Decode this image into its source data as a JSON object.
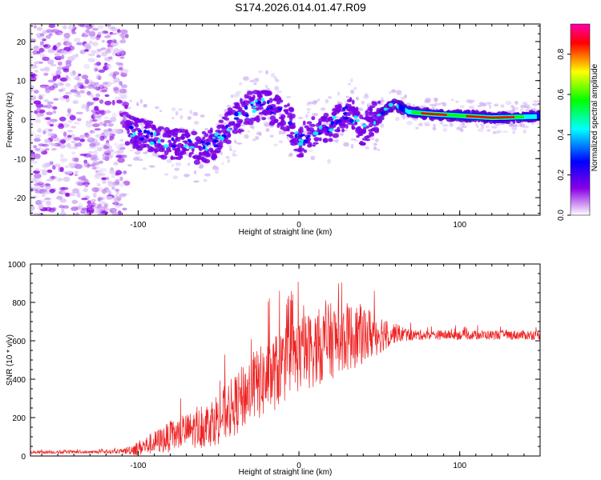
{
  "title": "S174.2026.014.01.47.R09",
  "chart_data": [
    {
      "type": "heatmap",
      "xlabel": "Height of straight line (km)",
      "ylabel": "Frequency (Hz)",
      "xlim": [
        -167,
        150
      ],
      "ylim": [
        -24.5,
        24.5
      ],
      "x_ticks": [
        -100,
        0,
        100
      ],
      "x_tick_labels": [
        "-100",
        "0",
        "100"
      ],
      "y_ticks": [
        -20,
        -10,
        0,
        10,
        20
      ],
      "y_tick_labels": [
        "-20",
        "-10",
        "0",
        "10",
        "20"
      ],
      "noise_region_end": -107,
      "ridge": {
        "x": [
          -104,
          -95,
          -85,
          -75,
          -65,
          -57,
          -50,
          -42,
          -36,
          -30,
          -24,
          -18,
          -12,
          -6,
          0,
          5,
          12,
          18,
          24,
          30,
          36,
          40,
          45,
          50,
          55,
          60,
          68,
          80,
          100,
          120,
          150
        ],
        "freq": [
          -3,
          -4,
          -6,
          -6,
          -7,
          -7,
          -5,
          -1,
          1,
          3,
          4,
          3,
          2,
          0,
          -6,
          -4,
          -3,
          -2,
          0,
          2,
          0,
          -3,
          0,
          1,
          3,
          4,
          2,
          1.5,
          1,
          0.5,
          0.8
        ]
      },
      "colorbar": {
        "label": "Normalized spectral amplitude",
        "range": [
          0,
          0.95
        ],
        "ticks": [
          0.0,
          0.2,
          0.4,
          0.6,
          0.8
        ],
        "tick_labels": [
          "0.0",
          "0.2",
          "0.4",
          "0.6",
          "0.8"
        ],
        "colors": [
          "#ffffff",
          "#8a00e6",
          "#0000ff",
          "#00ffff",
          "#00ff00",
          "#ffff00",
          "#ff0000",
          "#ff00aa"
        ]
      }
    },
    {
      "type": "line",
      "xlabel": "Height of straight line (km)",
      "ylabel": "SNR (10 * v/v)",
      "xlim": [
        -167,
        150
      ],
      "ylim": [
        0,
        1000
      ],
      "x_ticks": [
        -100,
        0,
        100
      ],
      "x_tick_labels": [
        "-100",
        "0",
        "100"
      ],
      "y_ticks": [
        0,
        200,
        400,
        600,
        800,
        1000
      ],
      "y_tick_labels": [
        "0",
        "200",
        "400",
        "600",
        "800",
        "1000"
      ],
      "series": [
        {
          "name": "SNR",
          "color": "#ee2222",
          "envelope_x": [
            -167,
            -130,
            -110,
            -100,
            -90,
            -80,
            -70,
            -60,
            -50,
            -40,
            -30,
            -20,
            -10,
            0,
            10,
            20,
            30,
            40,
            50,
            60,
            70,
            80,
            100,
            120,
            150
          ],
          "envelope_mean": [
            20,
            20,
            25,
            40,
            70,
            100,
            130,
            150,
            200,
            260,
            350,
            400,
            470,
            530,
            560,
            600,
            620,
            630,
            640,
            640,
            630,
            630,
            630,
            630,
            630
          ],
          "envelope_spread": [
            8,
            8,
            12,
            40,
            60,
            80,
            90,
            110,
            140,
            160,
            180,
            200,
            200,
            200,
            200,
            200,
            180,
            160,
            110,
            50,
            30,
            25,
            25,
            25,
            25
          ]
        }
      ]
    }
  ]
}
